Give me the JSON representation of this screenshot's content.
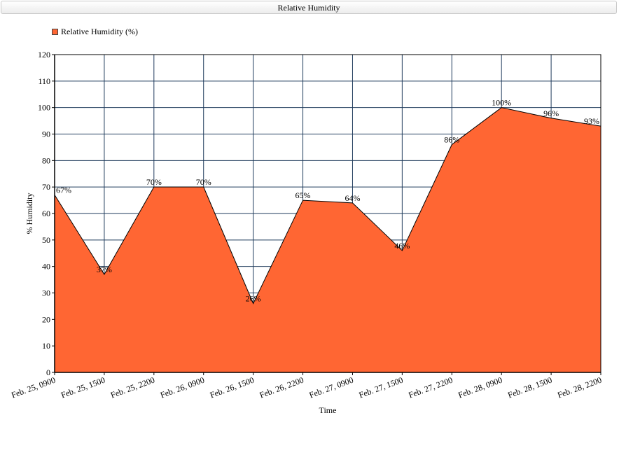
{
  "chart_data": {
    "type": "area",
    "title": "Relative Humidity",
    "xlabel": "Time",
    "ylabel": "% Humidity",
    "ylim": [
      0,
      120
    ],
    "yticks": [
      0,
      10,
      20,
      30,
      40,
      50,
      60,
      70,
      80,
      90,
      100,
      110,
      120
    ],
    "grid": true,
    "legend_position": "top-left",
    "categories": [
      "Feb. 25, 0900",
      "Feb. 25, 1500",
      "Feb. 25, 2200",
      "Feb. 26, 0900",
      "Feb. 26, 1500",
      "Feb. 26, 2200",
      "Feb. 27, 0900",
      "Feb. 27, 1500",
      "Feb. 27, 2200",
      "Feb. 28, 0900",
      "Feb. 28, 1500",
      "Feb. 28, 2200"
    ],
    "series": [
      {
        "name": "Relative Humidity (%)",
        "color": "#FF6633",
        "values": [
          67,
          37,
          70,
          70,
          26,
          65,
          64,
          46,
          86,
          100,
          96,
          93
        ],
        "labels": [
          "67%",
          "37%",
          "70%",
          "70%",
          "26%",
          "65%",
          "64%",
          "46%",
          "86%",
          "100%",
          "96%",
          "93%"
        ]
      }
    ]
  }
}
